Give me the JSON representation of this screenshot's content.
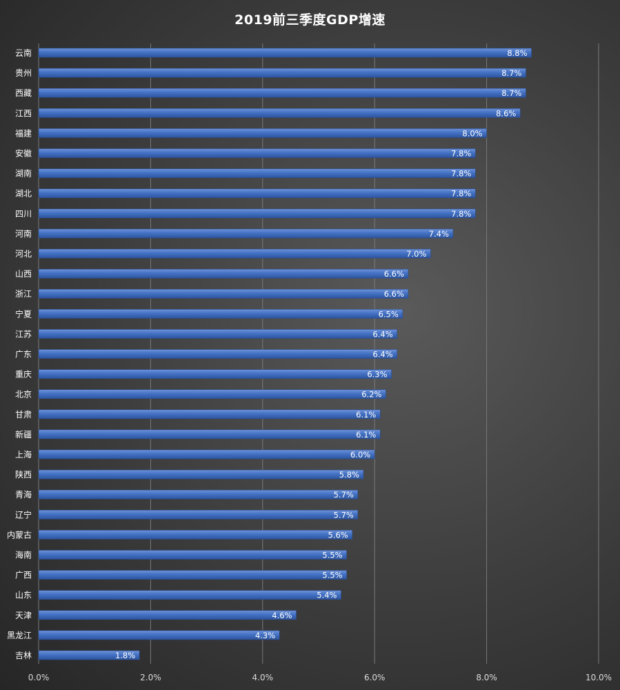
{
  "chart_data": {
    "type": "bar",
    "orientation": "horizontal",
    "title": "2019前三季度GDP增速",
    "categories": [
      "云南",
      "贵州",
      "西藏",
      "江西",
      "福建",
      "安徽",
      "湖南",
      "湖北",
      "四川",
      "河南",
      "河北",
      "山西",
      "浙江",
      "宁夏",
      "江苏",
      "广东",
      "重庆",
      "北京",
      "甘肃",
      "新疆",
      "上海",
      "陕西",
      "青海",
      "辽宁",
      "内蒙古",
      "海南",
      "广西",
      "山东",
      "天津",
      "黑龙江",
      "吉林"
    ],
    "values": [
      8.8,
      8.7,
      8.7,
      8.6,
      8.0,
      7.8,
      7.8,
      7.8,
      7.8,
      7.4,
      7.0,
      6.6,
      6.6,
      6.5,
      6.4,
      6.4,
      6.3,
      6.2,
      6.1,
      6.1,
      6.0,
      5.8,
      5.7,
      5.7,
      5.6,
      5.5,
      5.5,
      5.4,
      4.6,
      4.3,
      1.8
    ],
    "value_labels": [
      "8.8%",
      "8.7%",
      "8.7%",
      "8.6%",
      "8.0%",
      "7.8%",
      "7.8%",
      "7.8%",
      "7.8%",
      "7.4%",
      "7.0%",
      "6.6%",
      "6.6%",
      "6.5%",
      "6.4%",
      "6.4%",
      "6.3%",
      "6.2%",
      "6.1%",
      "6.1%",
      "6.0%",
      "5.8%",
      "5.7%",
      "5.7%",
      "5.6%",
      "5.5%",
      "5.5%",
      "5.4%",
      "4.6%",
      "4.3%",
      "1.8%"
    ],
    "xlim": [
      0,
      10
    ],
    "x_ticks": [
      0,
      2,
      4,
      6,
      8,
      10
    ],
    "x_tick_labels": [
      "0.0%",
      "2.0%",
      "4.0%",
      "6.0%",
      "8.0%",
      "10.0%"
    ],
    "grid": true,
    "bar_color": "#4472c4",
    "label_color": "#ffffff"
  }
}
